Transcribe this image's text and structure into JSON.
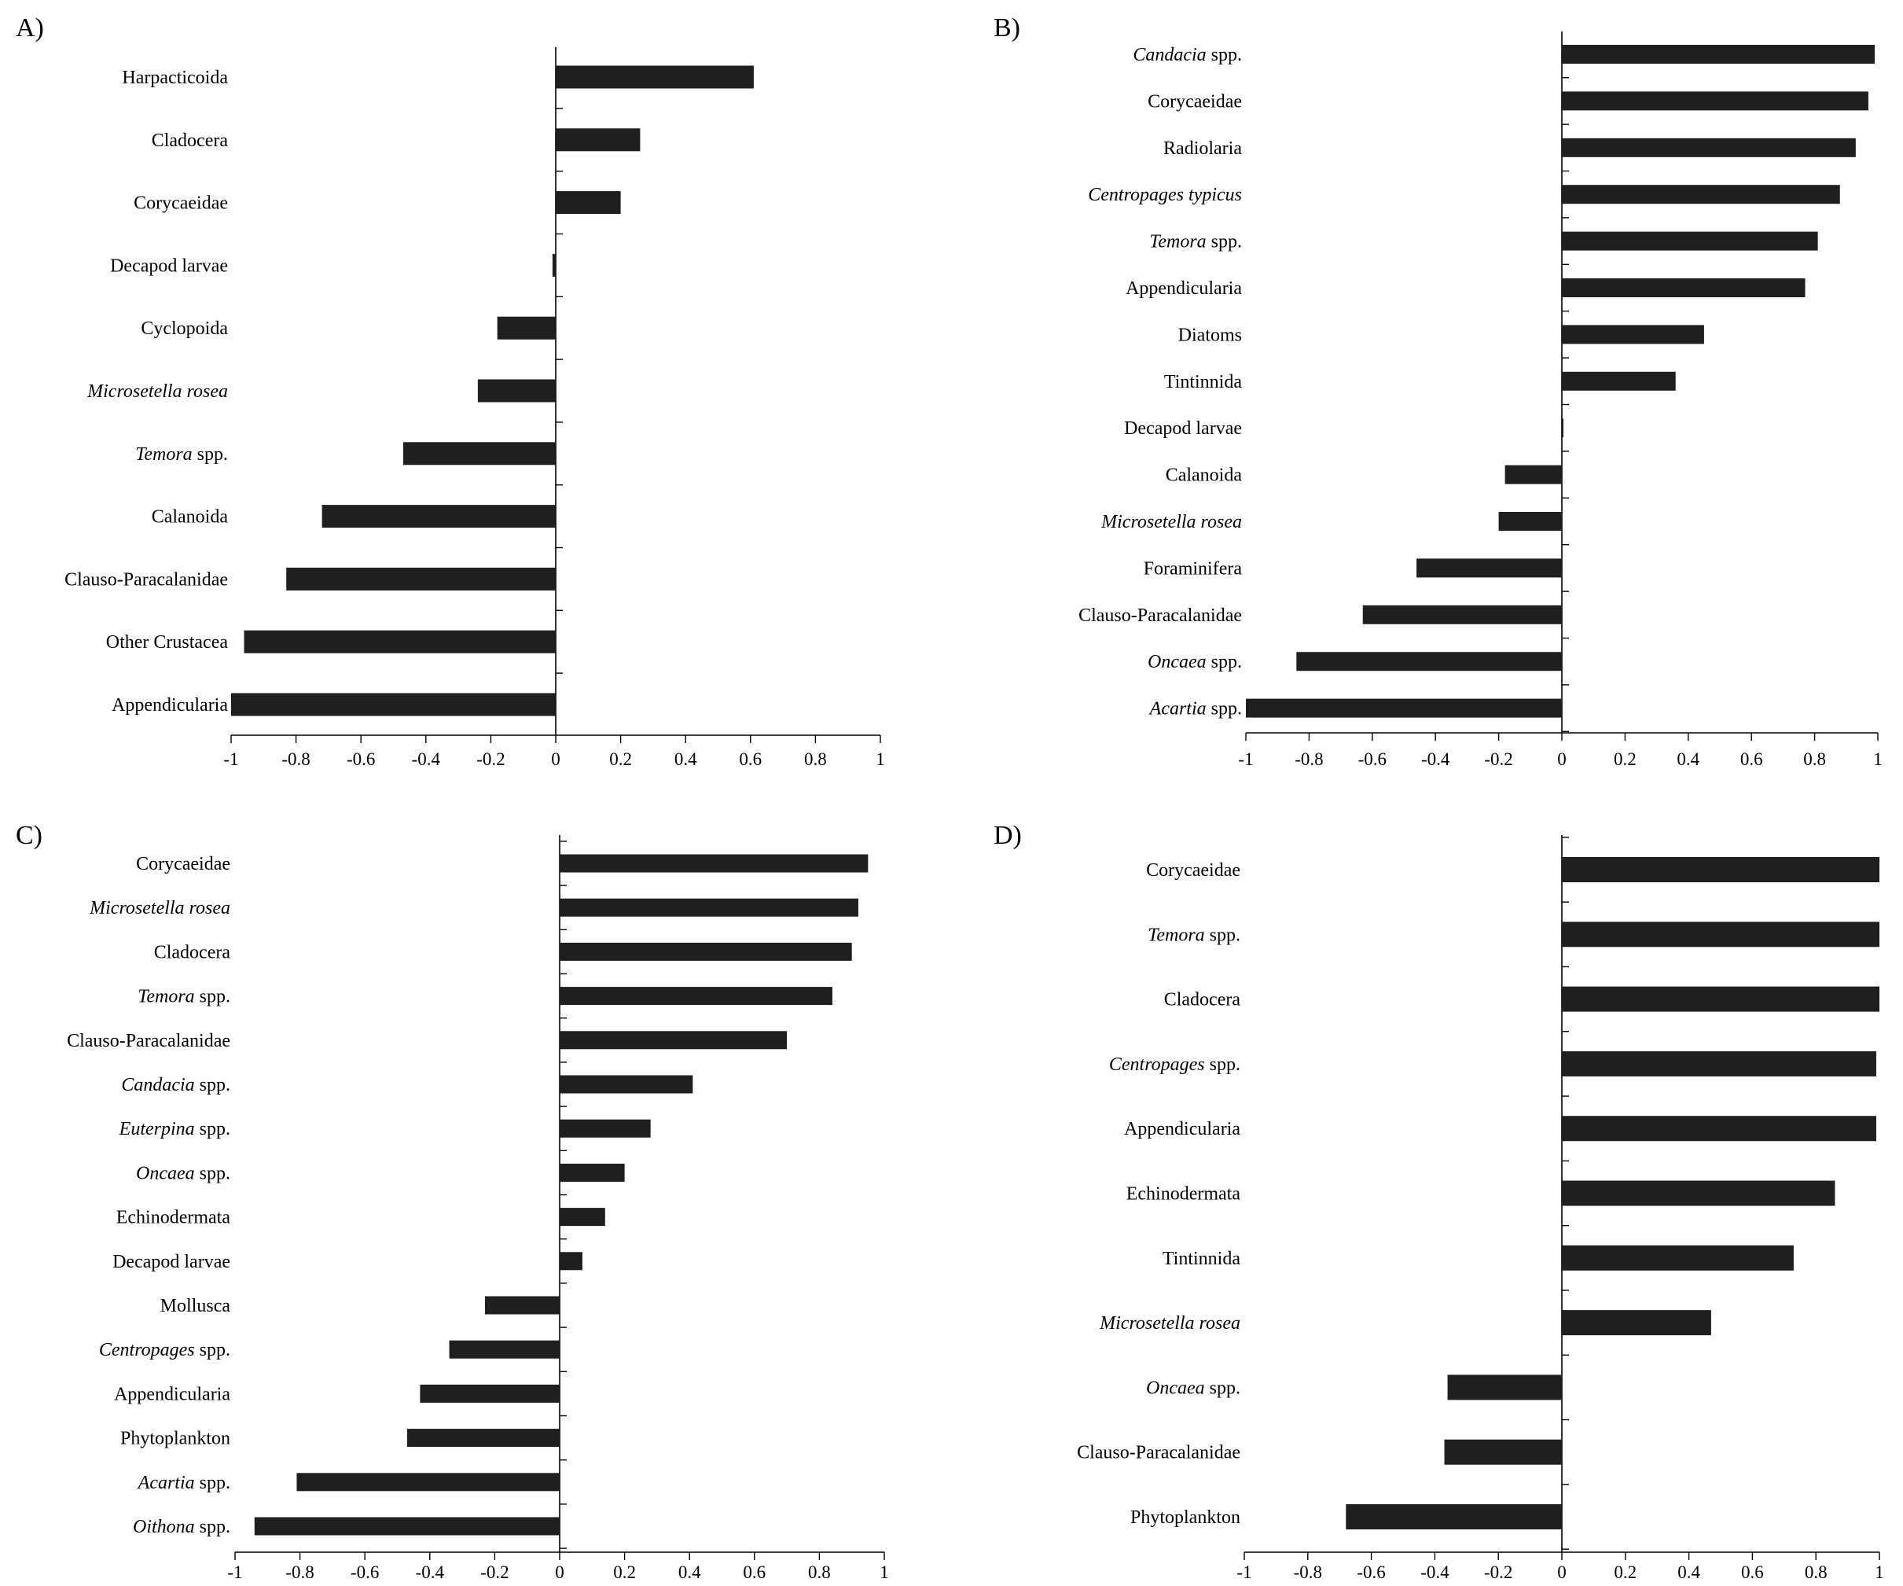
{
  "figure": {
    "panels": [
      "A)",
      "B)",
      "C)",
      "D)"
    ]
  },
  "chart_data": [
    {
      "type": "bar",
      "orientation": "horizontal",
      "panel_label": "A)",
      "categories": [
        {
          "name": "Harpacticoida",
          "italic": false
        },
        {
          "name": "Cladocera",
          "italic": false
        },
        {
          "name": "Corycaeidae",
          "italic": false
        },
        {
          "name": "Decapod larvae",
          "italic": false
        },
        {
          "name": "Cyclopoida",
          "italic": false
        },
        {
          "name": "Microsetella rosea",
          "italic": true
        },
        {
          "name": "Temora",
          "italic": true,
          "suffix": " spp."
        },
        {
          "name": "Calanoida",
          "italic": false
        },
        {
          "name": "Clauso-Paracalanidae",
          "italic": false
        },
        {
          "name": "Other Crustacea",
          "italic": false
        },
        {
          "name": "Appendicularia",
          "italic": false
        }
      ],
      "values": [
        0.61,
        0.26,
        0.2,
        -0.01,
        -0.18,
        -0.24,
        -0.47,
        -0.72,
        -0.83,
        -0.96,
        -1.0
      ],
      "xlim": [
        -1,
        1
      ],
      "xticks": [
        "-1",
        "-0.8",
        "-0.6",
        "-0.4",
        "-0.2",
        "0",
        "0.2",
        "0.4",
        "0.6",
        "0.8",
        "1"
      ],
      "title": "",
      "xlabel": "",
      "ylabel": "",
      "grid": false,
      "bar_color": "#1f1f1f"
    },
    {
      "type": "bar",
      "orientation": "horizontal",
      "panel_label": "B)",
      "categories": [
        {
          "name": "Candacia",
          "italic": true,
          "suffix": " spp."
        },
        {
          "name": "Corycaeidae",
          "italic": false
        },
        {
          "name": "Radiolaria",
          "italic": false
        },
        {
          "name": "Centropages typicus",
          "italic": true
        },
        {
          "name": "Temora",
          "italic": true,
          "suffix": " spp."
        },
        {
          "name": "Appendicularia",
          "italic": false
        },
        {
          "name": "Diatoms",
          "italic": false
        },
        {
          "name": "Tintinnida",
          "italic": false
        },
        {
          "name": "Decapod larvae",
          "italic": false
        },
        {
          "name": "Calanoida",
          "italic": false
        },
        {
          "name": "Microsetella rosea",
          "italic": true
        },
        {
          "name": "Foraminifera",
          "italic": false
        },
        {
          "name": "Clauso-Paracalanidae",
          "italic": false
        },
        {
          "name": "Oncaea",
          "italic": true,
          "suffix": " spp."
        },
        {
          "name": "Acartia",
          "italic": true,
          "suffix": " spp."
        }
      ],
      "values": [
        0.99,
        0.97,
        0.93,
        0.88,
        0.81,
        0.77,
        0.45,
        0.36,
        0.0,
        -0.18,
        -0.2,
        -0.46,
        -0.63,
        -0.84,
        -1.0
      ],
      "xlim": [
        -1,
        1
      ],
      "xticks": [
        "-1",
        "-0.8",
        "-0.6",
        "-0.4",
        "-0.2",
        "0",
        "0.2",
        "0.4",
        "0.6",
        "0.8",
        "1"
      ],
      "title": "",
      "xlabel": "",
      "ylabel": "",
      "grid": false,
      "bar_color": "#1f1f1f"
    },
    {
      "type": "bar",
      "orientation": "horizontal",
      "panel_label": "C)",
      "categories": [
        {
          "name": "Corycaeidae",
          "italic": false
        },
        {
          "name": "Microsetella rosea",
          "italic": true
        },
        {
          "name": "Cladocera",
          "italic": false
        },
        {
          "name": "Temora",
          "italic": true,
          "suffix": " spp."
        },
        {
          "name": "Clauso-Paracalanidae",
          "italic": false
        },
        {
          "name": "Candacia",
          "italic": true,
          "suffix": " spp."
        },
        {
          "name": "Euterpina",
          "italic": true,
          "suffix": " spp."
        },
        {
          "name": "Oncaea",
          "italic": true,
          "suffix": " spp."
        },
        {
          "name": "Echinodermata",
          "italic": false
        },
        {
          "name": "Decapod larvae",
          "italic": false
        },
        {
          "name": "Mollusca",
          "italic": false
        },
        {
          "name": "Centropages",
          "italic": true,
          "suffix": " spp."
        },
        {
          "name": "Appendicularia",
          "italic": false
        },
        {
          "name": "Phytoplankton",
          "italic": false
        },
        {
          "name": "Acartia",
          "italic": true,
          "suffix": " spp."
        },
        {
          "name": "Oithona",
          "italic": true,
          "suffix": " spp."
        }
      ],
      "values": [
        0.95,
        0.92,
        0.9,
        0.84,
        0.7,
        0.41,
        0.28,
        0.2,
        0.14,
        0.07,
        -0.23,
        -0.34,
        -0.43,
        -0.47,
        -0.81,
        -0.94
      ],
      "xlim": [
        -1,
        1
      ],
      "xticks": [
        "-1",
        "-0.8",
        "-0.6",
        "-0.4",
        "-0.2",
        "0",
        "0.2",
        "0.4",
        "0.6",
        "0.8",
        "1"
      ],
      "title": "",
      "xlabel": "",
      "ylabel": "",
      "grid": false,
      "bar_color": "#1f1f1f"
    },
    {
      "type": "bar",
      "orientation": "horizontal",
      "panel_label": "D)",
      "categories": [
        {
          "name": "Corycaeidae",
          "italic": false
        },
        {
          "name": "Temora",
          "italic": true,
          "suffix": " spp."
        },
        {
          "name": "Cladocera",
          "italic": false
        },
        {
          "name": "Centropages",
          "italic": true,
          "suffix": " spp."
        },
        {
          "name": "Appendicularia",
          "italic": false
        },
        {
          "name": "Echinodermata",
          "italic": false
        },
        {
          "name": "Tintinnida",
          "italic": false
        },
        {
          "name": "Microsetella rosea",
          "italic": true
        },
        {
          "name": "Oncaea",
          "italic": true,
          "suffix": " spp."
        },
        {
          "name": "Clauso-Paracalanidae",
          "italic": false
        },
        {
          "name": "Phytoplankton",
          "italic": false
        }
      ],
      "values": [
        1.0,
        1.0,
        1.0,
        0.99,
        0.99,
        0.86,
        0.73,
        0.47,
        -0.36,
        -0.37,
        -0.68
      ],
      "xlim": [
        -1,
        1
      ],
      "xticks": [
        "-1",
        "-0.8",
        "-0.6",
        "-0.4",
        "-0.2",
        "0",
        "0.2",
        "0.4",
        "0.6",
        "0.8",
        "1"
      ],
      "title": "",
      "xlabel": "",
      "ylabel": "",
      "grid": false,
      "bar_color": "#1f1f1f"
    }
  ]
}
